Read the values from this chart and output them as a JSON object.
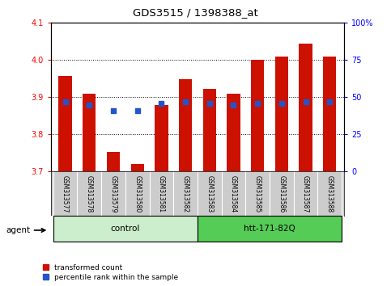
{
  "title": "GDS3515 / 1398388_at",
  "samples": [
    "GSM313577",
    "GSM313578",
    "GSM313579",
    "GSM313580",
    "GSM313581",
    "GSM313582",
    "GSM313583",
    "GSM313584",
    "GSM313585",
    "GSM313586",
    "GSM313587",
    "GSM313588"
  ],
  "red_values": [
    3.957,
    3.91,
    3.752,
    3.72,
    3.88,
    3.948,
    3.922,
    3.91,
    4.0,
    4.01,
    4.045,
    4.01
  ],
  "blue_values": [
    3.887,
    3.88,
    3.863,
    3.863,
    3.883,
    3.887,
    3.883,
    3.88,
    3.883,
    3.883,
    3.887,
    3.887
  ],
  "bar_baseline": 3.7,
  "ylim_left": [
    3.7,
    4.1
  ],
  "ylim_right": [
    0,
    100
  ],
  "yticks_left": [
    3.7,
    3.8,
    3.9,
    4.0,
    4.1
  ],
  "yticks_right": [
    0,
    25,
    50,
    75,
    100
  ],
  "ytick_labels_right": [
    "0",
    "25",
    "50",
    "75",
    "100%"
  ],
  "bar_color": "#cc1100",
  "blue_color": "#2255cc",
  "bar_width": 0.55,
  "blue_size": 4,
  "background_color": "#ffffff",
  "tick_label_area_color": "#cccccc",
  "agent_label": "agent",
  "control_color": "#cceecc",
  "htt_color": "#55cc55",
  "legend_items": [
    {
      "label": "transformed count",
      "color": "#cc1100"
    },
    {
      "label": "percentile rank within the sample",
      "color": "#2255cc"
    }
  ]
}
